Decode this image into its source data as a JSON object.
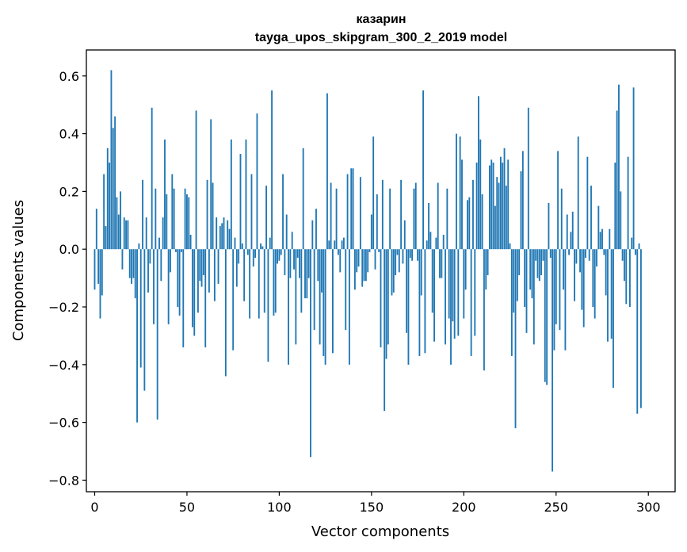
{
  "chart_data": {
    "type": "bar",
    "title": "казарин",
    "subtitle": "tayga_upos_skipgram_300_2_2019 model",
    "xlabel": "Vector components",
    "ylabel": "Components values",
    "xlim": [
      -4.5,
      314.5
    ],
    "ylim": [
      -0.84,
      0.69
    ],
    "xticks": [
      0,
      50,
      100,
      150,
      200,
      250,
      300
    ],
    "yticks": [
      0.6,
      0.4,
      0.2,
      0.0,
      -0.2,
      -0.4,
      -0.6,
      -0.8
    ],
    "ytick_labels": [
      "0.6",
      "0.4",
      "0.2",
      "0.0",
      "−0.2",
      "−0.4",
      "−0.6",
      "−0.8"
    ],
    "xtick_labels": [
      "0",
      "50",
      "100",
      "150",
      "200",
      "250",
      "300"
    ],
    "bar_color": "#1f77b4",
    "grid": false,
    "values": [
      -0.14,
      0.14,
      -0.12,
      -0.24,
      -0.16,
      0.26,
      0.08,
      0.35,
      0.3,
      0.62,
      0.42,
      0.46,
      0.18,
      0.12,
      0.2,
      -0.07,
      0.11,
      0.1,
      0.1,
      -0.1,
      -0.12,
      -0.1,
      -0.17,
      -0.6,
      0.02,
      -0.41,
      0.24,
      -0.49,
      0.11,
      -0.15,
      -0.05,
      0.49,
      -0.26,
      0.21,
      -0.59,
      0.04,
      -0.11,
      0.11,
      0.38,
      0.19,
      -0.26,
      -0.08,
      0.26,
      0.21,
      -0.01,
      -0.2,
      -0.23,
      -0.01,
      -0.34,
      0.21,
      0.19,
      0.18,
      0.05,
      -0.27,
      -0.3,
      0.48,
      -0.22,
      -0.11,
      -0.13,
      -0.09,
      -0.34,
      0.24,
      -0.15,
      0.45,
      0.23,
      -0.18,
      0.11,
      -0.12,
      0.08,
      0.09,
      0.11,
      -0.44,
      0.1,
      0.07,
      0.38,
      -0.35,
      0.04,
      -0.13,
      -0.05,
      0.33,
      0.02,
      -0.18,
      0.38,
      -0.02,
      -0.24,
      0.26,
      -0.06,
      -0.03,
      0.47,
      -0.24,
      0.02,
      0.01,
      -0.22,
      0.22,
      -0.39,
      0.04,
      0.55,
      -0.23,
      -0.22,
      -0.05,
      -0.04,
      -0.02,
      0.26,
      -0.09,
      0.12,
      -0.4,
      -0.1,
      0.06,
      -0.07,
      -0.33,
      -0.03,
      -0.1,
      -0.22,
      0.35,
      -0.17,
      -0.17,
      -0.1,
      -0.72,
      0.1,
      -0.28,
      0.14,
      -0.11,
      -0.33,
      -0.15,
      -0.37,
      -0.4,
      0.54,
      0.03,
      0.23,
      -0.36,
      0.03,
      0.21,
      -0.02,
      -0.08,
      0.03,
      0.04,
      -0.28,
      0.26,
      -0.4,
      0.28,
      0.28,
      -0.14,
      -0.08,
      -0.06,
      0.25,
      -0.13,
      -0.11,
      -0.11,
      -0.08,
      -0.01,
      0.12,
      0.39,
      -0.07,
      0.19,
      -0.01,
      -0.34,
      0.24,
      -0.56,
      -0.38,
      -0.33,
      0.21,
      -0.16,
      -0.15,
      -0.09,
      -0.02,
      -0.08,
      0.24,
      -0.05,
      0.1,
      -0.29,
      -0.4,
      -0.03,
      -0.04,
      0.21,
      0.23,
      -0.04,
      -0.37,
      -0.16,
      0.55,
      -0.36,
      0.03,
      0.16,
      0.06,
      -0.22,
      -0.32,
      0.04,
      0.23,
      -0.1,
      -0.1,
      0.05,
      -0.33,
      0.21,
      -0.24,
      -0.4,
      -0.25,
      -0.31,
      0.4,
      -0.3,
      0.39,
      0.31,
      -0.24,
      -0.14,
      0.17,
      0.18,
      -0.37,
      0.24,
      -0.3,
      0.3,
      0.53,
      0.38,
      0.19,
      -0.42,
      -0.14,
      -0.09,
      0.29,
      0.31,
      0.3,
      0.15,
      0.25,
      0.23,
      0.32,
      0.3,
      0.35,
      0.22,
      0.31,
      0.02,
      -0.37,
      -0.22,
      -0.62,
      -0.18,
      -0.09,
      0.27,
      0.34,
      -0.2,
      -0.29,
      0.49,
      -0.14,
      -0.17,
      -0.33,
      -0.04,
      -0.1,
      -0.11,
      -0.09,
      -0.04,
      -0.46,
      -0.47,
      0.16,
      -0.03,
      -0.77,
      -0.35,
      -0.26,
      0.34,
      -0.28,
      0.21,
      -0.14,
      -0.35,
      0.12,
      -0.02,
      0.06,
      0.13,
      -0.18,
      -0.05,
      0.39,
      -0.08,
      -0.21,
      -0.27,
      -0.03,
      0.32,
      -0.04,
      0.22,
      -0.2,
      -0.24,
      -0.06,
      0.15,
      0.06,
      0.07,
      -0.02,
      -0.16,
      -0.32,
      0.07,
      -0.31,
      -0.48,
      0.3,
      0.48,
      0.57,
      0.2,
      -0.04,
      -0.11,
      -0.19,
      0.32,
      -0.2,
      0.04,
      0.56,
      -0.02,
      -0.57,
      0.02,
      -0.55
    ]
  }
}
